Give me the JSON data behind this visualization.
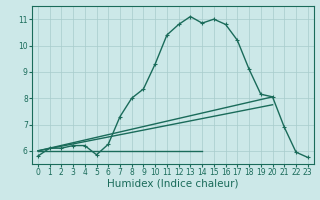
{
  "bg_color": "#cce8e8",
  "grid_color": "#a8cccc",
  "line_color": "#1a6b5a",
  "xlabel": "Humidex (Indice chaleur)",
  "xlim": [
    -0.5,
    23.5
  ],
  "ylim": [
    5.5,
    11.5
  ],
  "yticks": [
    6,
    7,
    8,
    9,
    10,
    11
  ],
  "xticks": [
    0,
    1,
    2,
    3,
    4,
    5,
    6,
    7,
    8,
    9,
    10,
    11,
    12,
    13,
    14,
    15,
    16,
    17,
    18,
    19,
    20,
    21,
    22,
    23
  ],
  "main_series": {
    "x": [
      0,
      1,
      2,
      3,
      4,
      5,
      6,
      7,
      8,
      9,
      10,
      11,
      12,
      13,
      14,
      15,
      16,
      17,
      18,
      19,
      20,
      21,
      22,
      23
    ],
    "y": [
      5.8,
      6.1,
      6.1,
      6.2,
      6.2,
      5.85,
      6.25,
      7.3,
      8.0,
      8.35,
      9.3,
      10.4,
      10.8,
      11.1,
      10.85,
      11.0,
      10.8,
      10.2,
      9.1,
      8.15,
      8.05,
      6.9,
      5.95,
      5.75
    ]
  },
  "line1": {
    "x": [
      0,
      14
    ],
    "y": [
      6.0,
      6.0
    ]
  },
  "line2": {
    "x": [
      0,
      20
    ],
    "y": [
      6.0,
      7.75
    ]
  },
  "line3": {
    "x": [
      0,
      20
    ],
    "y": [
      6.0,
      8.05
    ]
  },
  "tick_fontsize": 5.5,
  "xlabel_fontsize": 7.5,
  "linewidth": 1.0,
  "markersize": 2.5
}
